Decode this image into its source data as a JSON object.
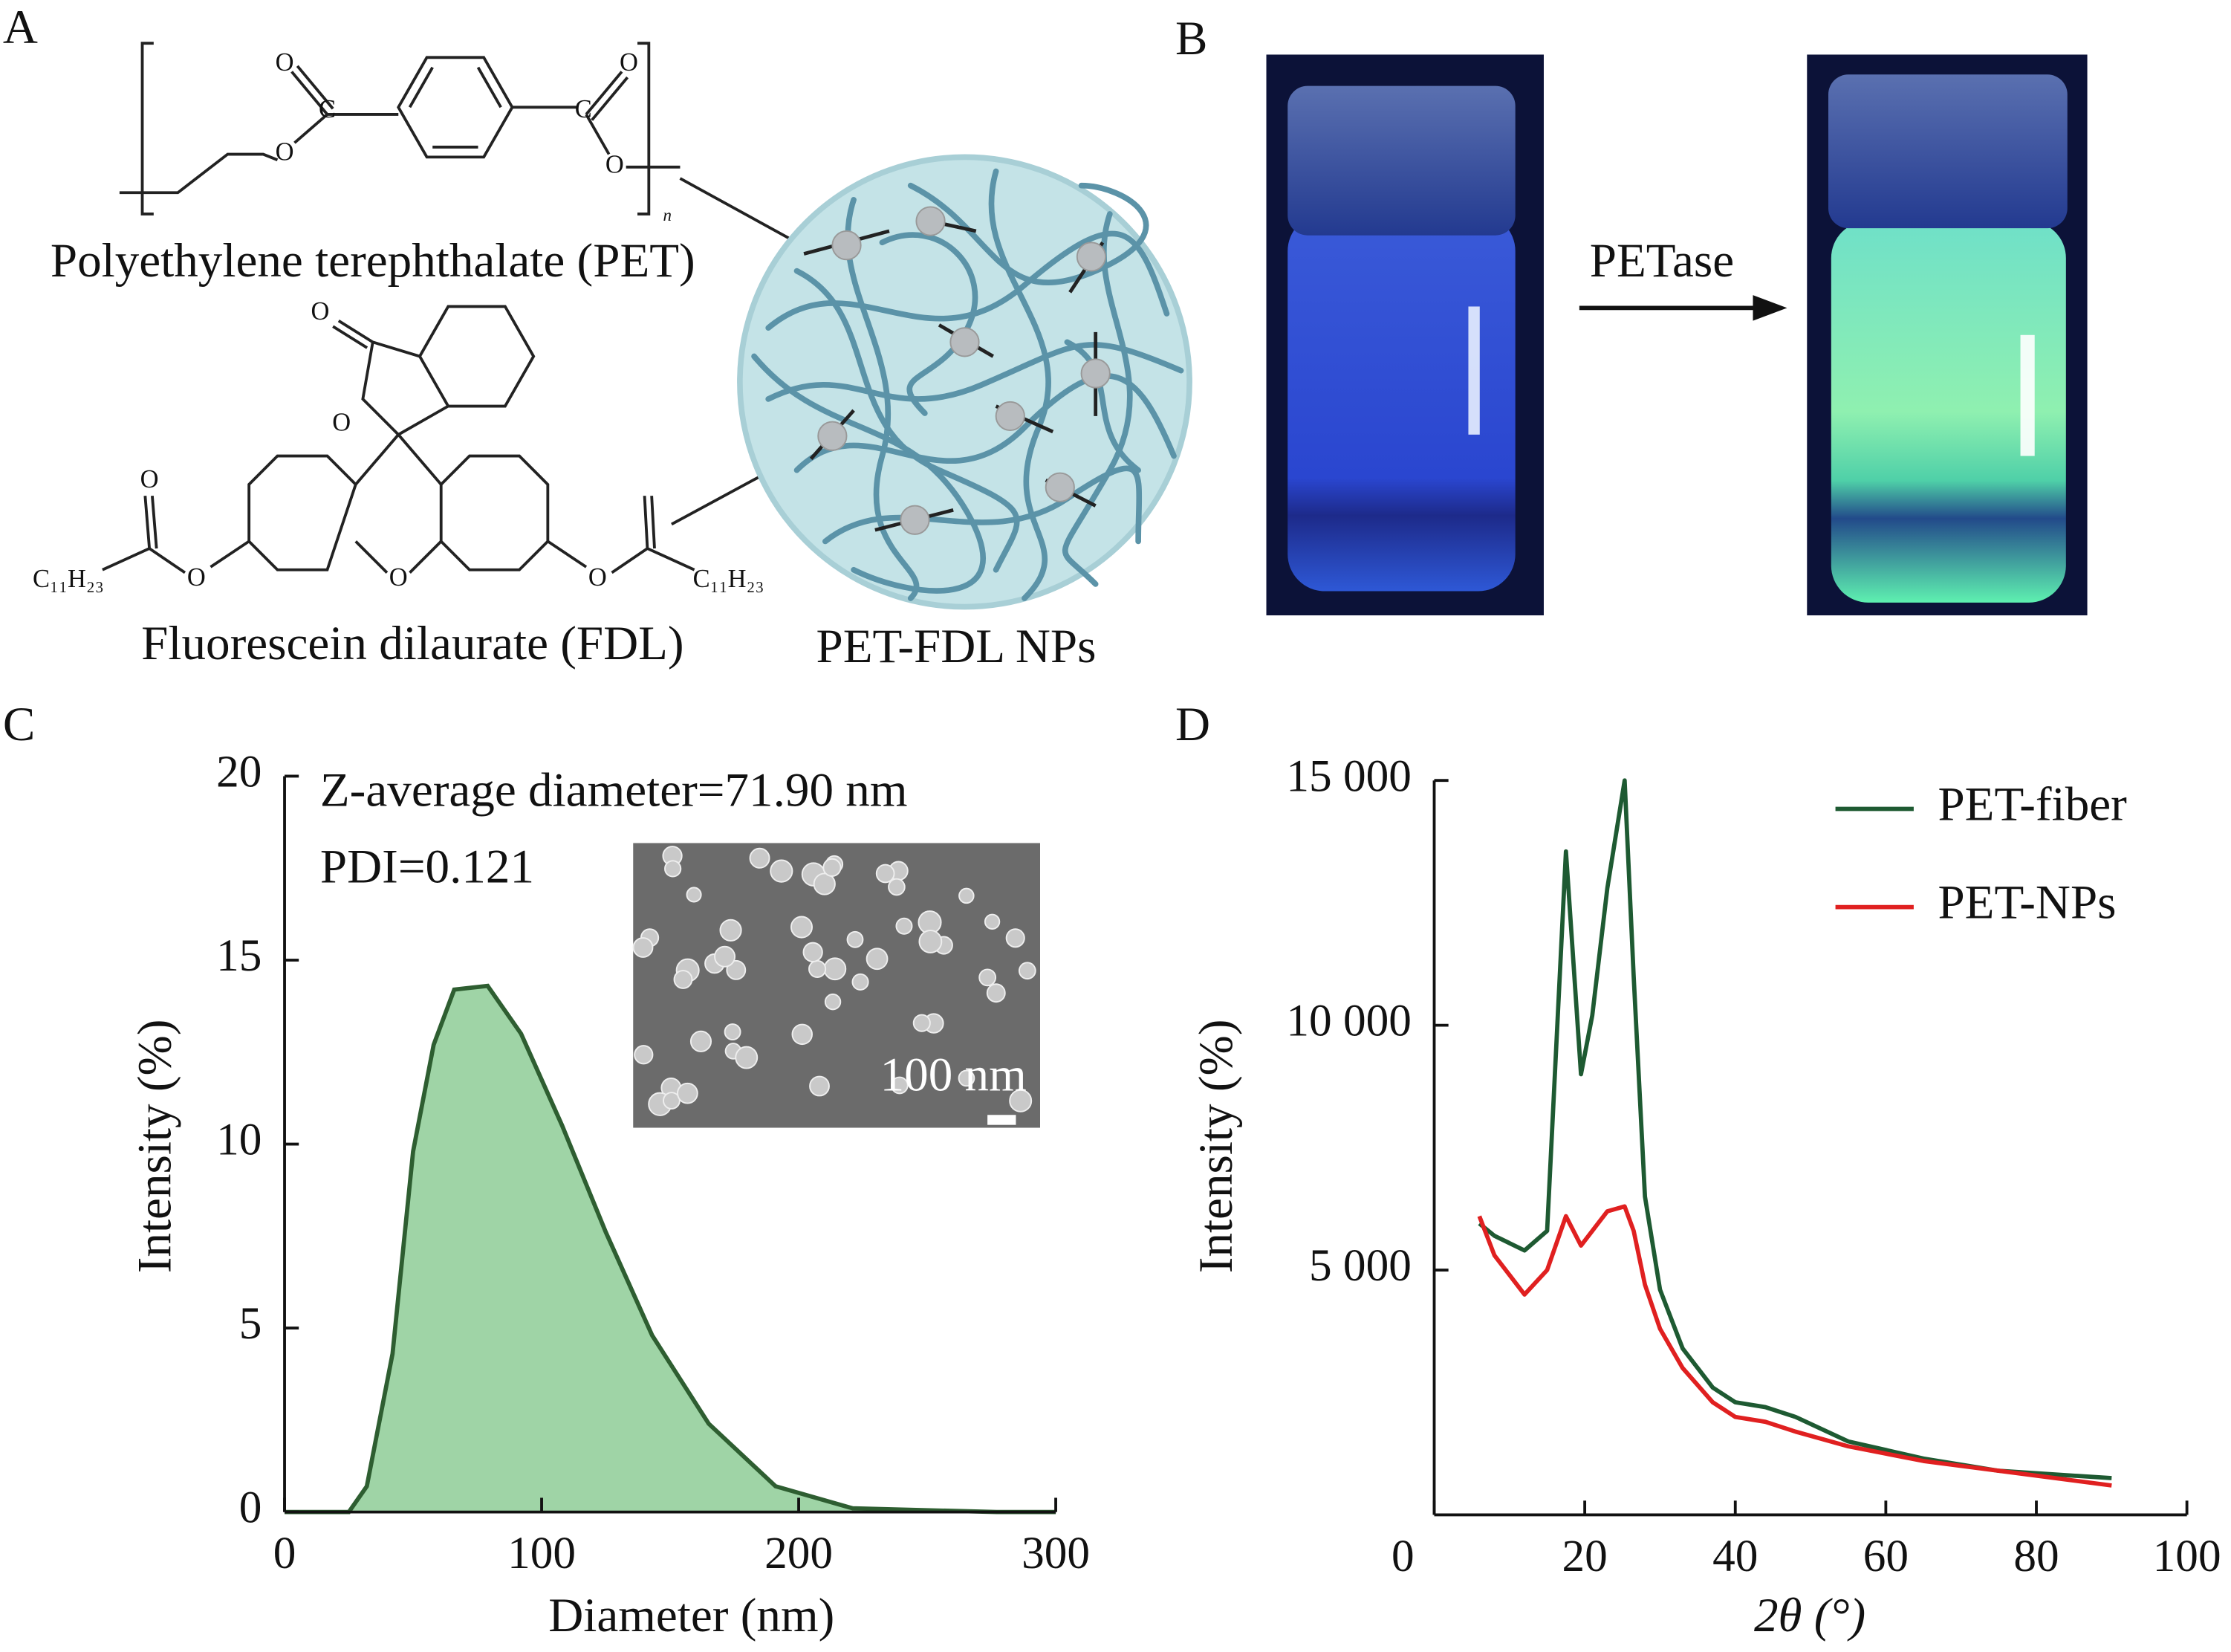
{
  "panel_a": {
    "label": "A",
    "pet_name": "Polyethylene terephthalate (PET)",
    "fdl_name": "Fluorescein dilaurate (FDL)",
    "np_name": "PET-FDL NPs",
    "atom_labels": [
      "O",
      "C",
      "O",
      "O",
      "C",
      "O",
      "n",
      "O",
      "O",
      "O",
      "O",
      "O",
      "O",
      "C₁₁H₂₃",
      "C₁₁H₂₃"
    ]
  },
  "panel_b": {
    "label": "B",
    "arrow_label": "PETase"
  },
  "chart_data": [
    {
      "type": "area",
      "panel_label": "C",
      "x_label": "Diameter (nm)",
      "y_label": "Intensity (%)",
      "annotations": [
        "Z-average diameter=71.90 nm",
        "PDI=0.121"
      ],
      "inset_scale_label": "100 nm",
      "x": [
        0,
        25,
        32,
        42,
        50,
        58,
        66,
        79,
        92,
        108,
        125,
        143,
        165,
        191,
        221,
        277,
        300
      ],
      "values": [
        0,
        0,
        0.7,
        4.3,
        9.8,
        12.7,
        14.2,
        14.3,
        13,
        10.5,
        7.6,
        4.8,
        2.4,
        0.7,
        0.1,
        0,
        0
      ],
      "color": "#9fd4a6",
      "line_color": "#2e5e31",
      "xlim": [
        0,
        300
      ],
      "xticks": [
        0,
        100,
        200,
        300
      ],
      "ylim": [
        0,
        20
      ],
      "yticks": [
        0,
        5,
        10,
        15,
        20
      ]
    },
    {
      "type": "line",
      "panel_label": "D",
      "x_label": "2θ (°)",
      "y_label": "Intensity (%)",
      "x": [
        6,
        8,
        12,
        15,
        17.5,
        19.5,
        21,
        23,
        25.3,
        26.5,
        28,
        30,
        33,
        37,
        40,
        44,
        48,
        55,
        65,
        75,
        90
      ],
      "series": [
        {
          "name": "PET-fiber",
          "color": "#1e5a32",
          "values": [
            5950,
            5700,
            5400,
            5800,
            13550,
            9000,
            10200,
            12800,
            15000,
            11000,
            6500,
            4600,
            3400,
            2600,
            2300,
            2200,
            2000,
            1500,
            1150,
            900,
            750
          ]
        },
        {
          "name": "PET-NPs",
          "color": "#e02020",
          "values": [
            6100,
            5300,
            4500,
            5000,
            6100,
            5500,
            5800,
            6200,
            6300,
            5800,
            4700,
            3800,
            3000,
            2300,
            2000,
            1900,
            1700,
            1400,
            1100,
            900,
            600
          ]
        }
      ],
      "xlim": [
        0,
        100
      ],
      "xticks": [
        0,
        20,
        40,
        60,
        80,
        100
      ],
      "ylim": [
        0,
        15000
      ],
      "yticks": [
        {
          "value": 5000,
          "label": "5 000"
        },
        {
          "value": 10000,
          "label": "10 000"
        },
        {
          "value": 15000,
          "label": "15 000"
        }
      ],
      "legend": "top-right"
    }
  ]
}
